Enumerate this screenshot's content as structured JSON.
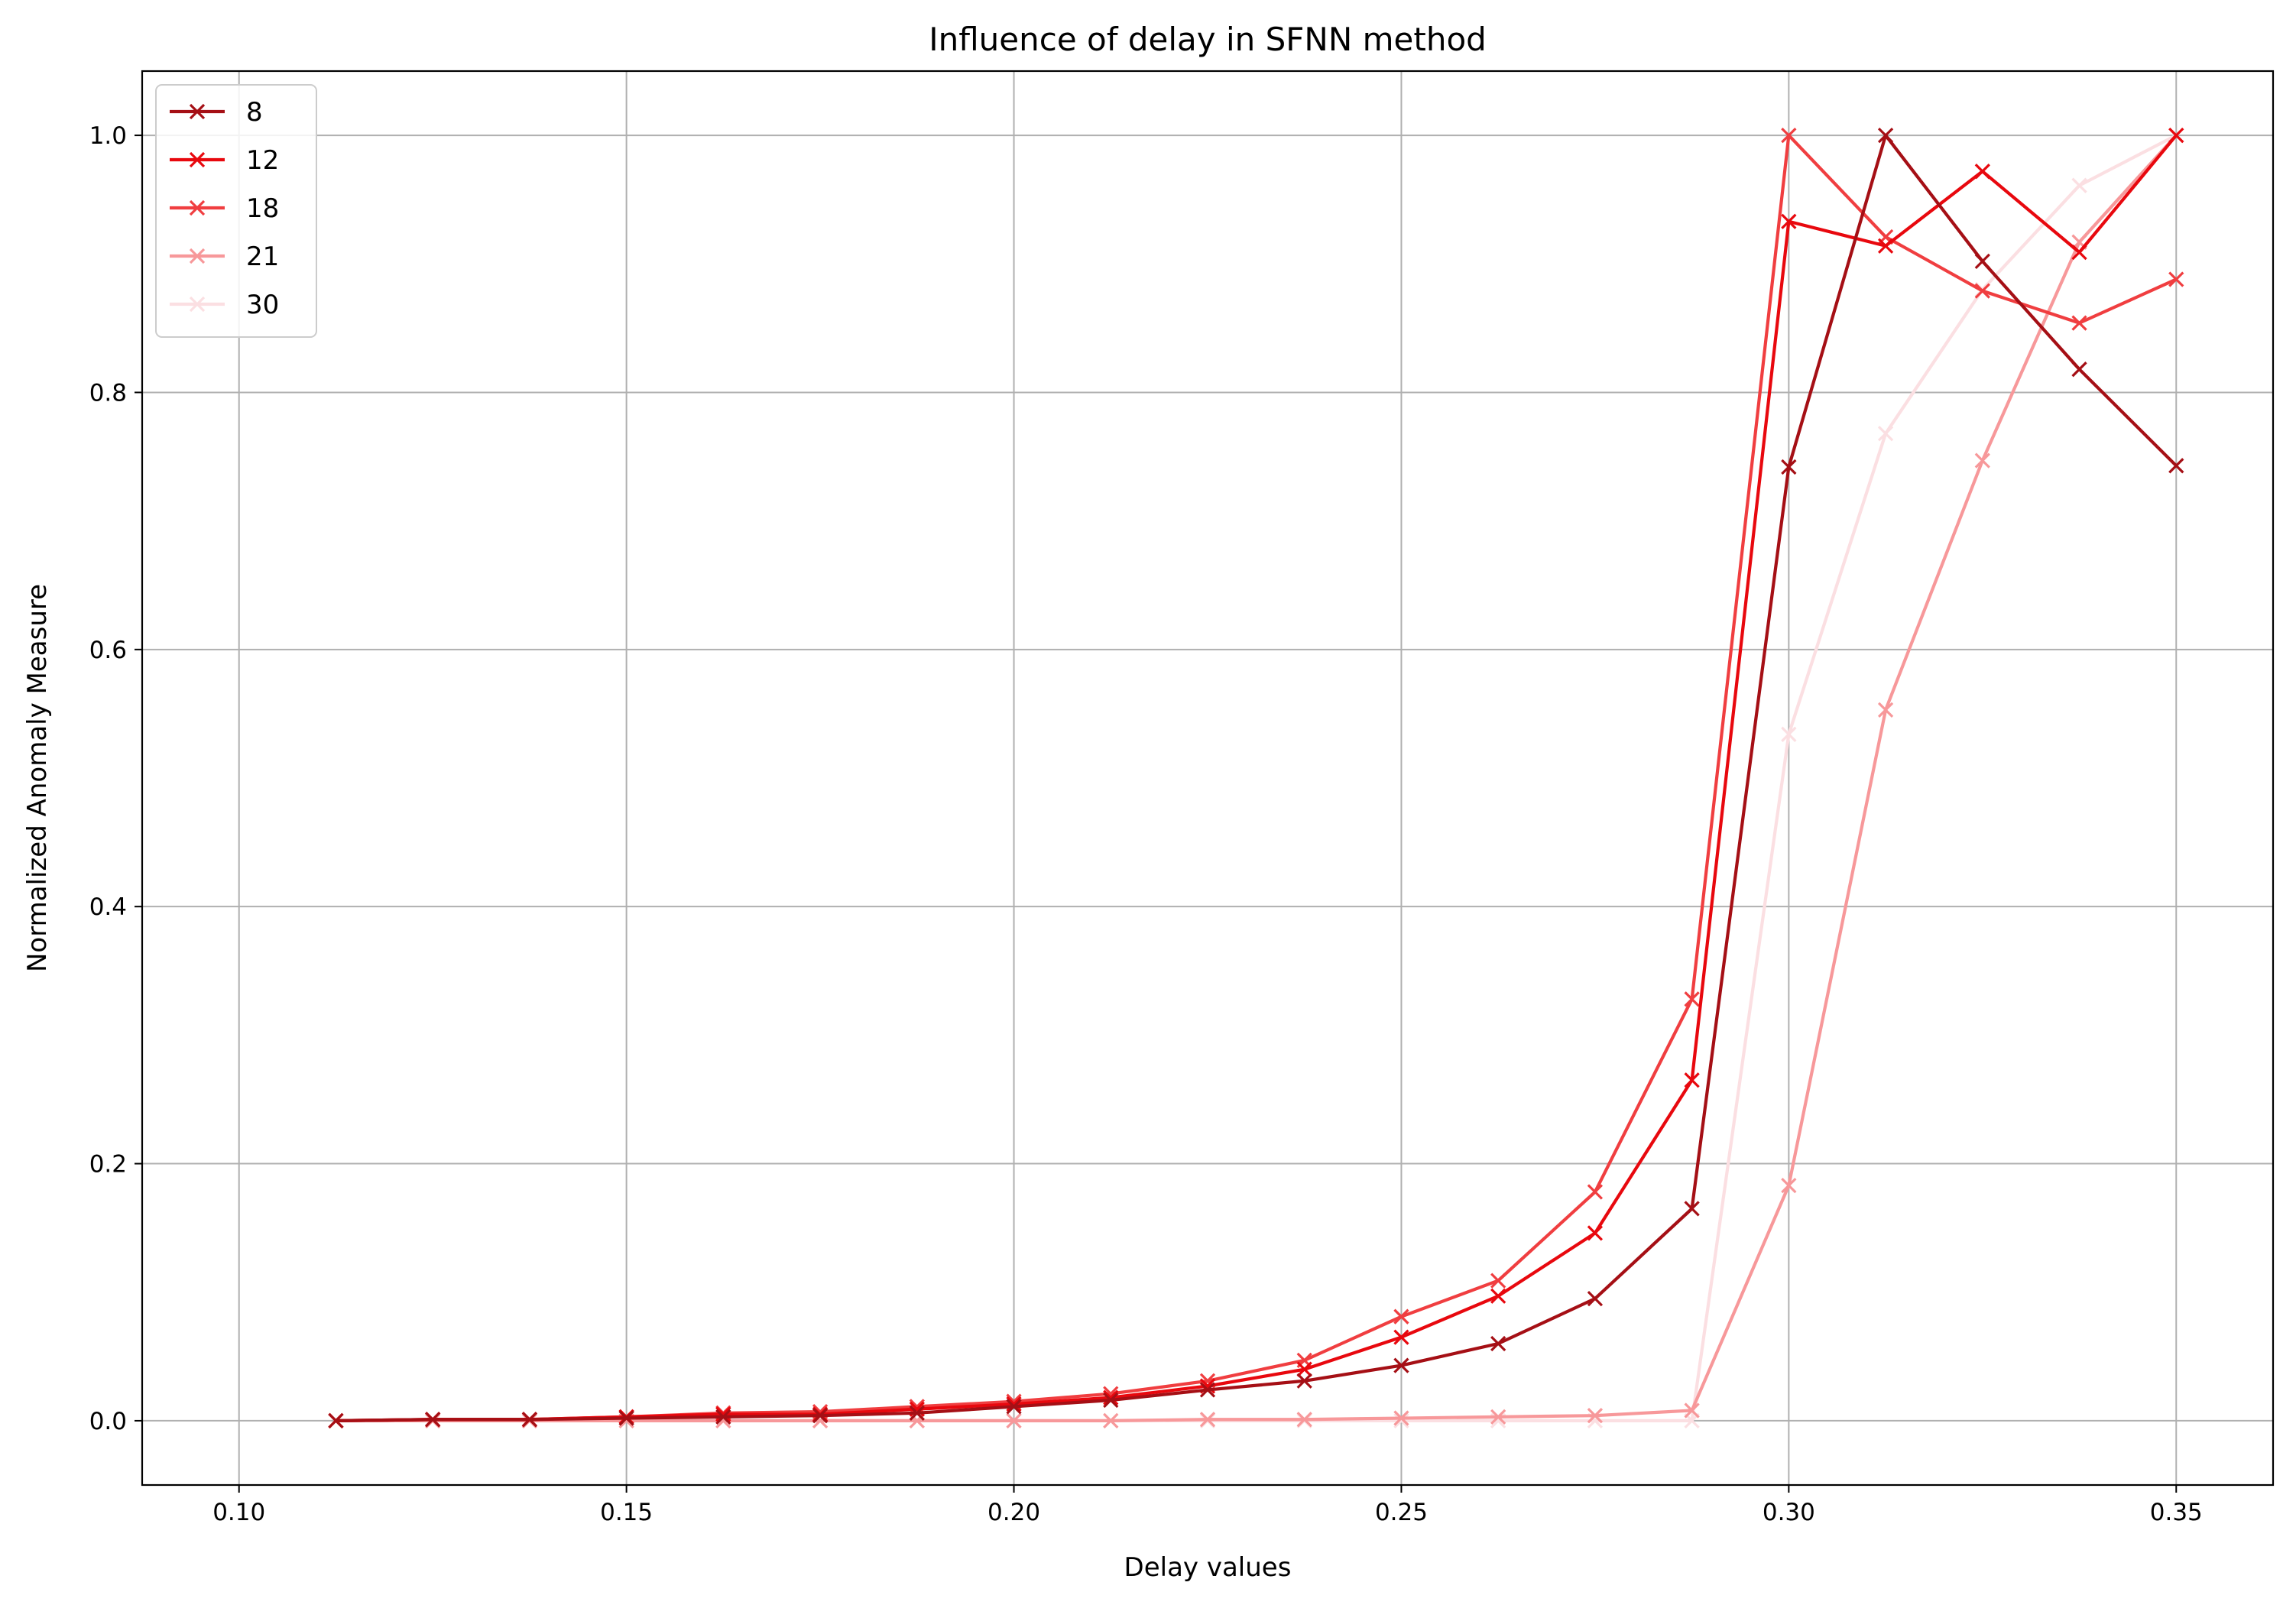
{
  "chart_data": {
    "type": "line",
    "title": "Influence of delay in SFNN method",
    "xlabel": "Delay values",
    "ylabel": "Normalized Anomaly Measure",
    "xlim": [
      0.0875,
      0.3625
    ],
    "ylim": [
      -0.05,
      1.05
    ],
    "xticks": [
      "0.10",
      "0.15",
      "0.20",
      "0.25",
      "0.30",
      "0.35"
    ],
    "yticks": [
      "0.0",
      "0.2",
      "0.4",
      "0.6",
      "0.8",
      "1.0"
    ],
    "grid": true,
    "legend_position": "top-left",
    "marker": "x",
    "x": [
      0.1,
      0.1125,
      0.125,
      0.1375,
      0.15,
      0.1625,
      0.175,
      0.1875,
      0.2,
      0.2125,
      0.225,
      0.2375,
      0.25,
      0.2625,
      0.275,
      0.2875,
      0.3,
      0.3125,
      0.325,
      0.3375,
      0.35
    ],
    "series": [
      {
        "name": "8",
        "color": "#a50f15",
        "values": [
          0.0,
          0.001,
          0.001,
          0.002,
          0.003,
          0.004,
          0.006,
          0.011,
          0.016,
          0.024,
          0.031,
          0.043,
          0.06,
          0.095,
          0.165,
          0.742,
          1.0,
          0.902,
          0.818,
          0.743,
          null
        ]
      },
      {
        "name": "12",
        "color": "#e8080e",
        "values": [
          0.0,
          0.001,
          0.001,
          0.003,
          0.005,
          0.005,
          0.009,
          0.013,
          0.018,
          0.027,
          0.04,
          0.065,
          0.097,
          0.146,
          0.265,
          0.933,
          0.914,
          0.972,
          0.909,
          1.0,
          null
        ]
      },
      {
        "name": "18",
        "color": "#f03e40",
        "values": [
          0.0,
          0.001,
          0.001,
          0.003,
          0.006,
          0.007,
          0.011,
          0.015,
          0.021,
          0.031,
          0.047,
          0.081,
          0.109,
          0.178,
          0.328,
          1.0,
          0.921,
          0.879,
          0.854,
          0.888,
          null
        ]
      },
      {
        "name": "21",
        "color": "#f7989a",
        "values": [
          0.0,
          0.0,
          0.0,
          0.0,
          0.0,
          0.0,
          0.0,
          0.0,
          0.0,
          0.001,
          0.001,
          0.002,
          0.003,
          0.004,
          0.008,
          0.183,
          0.553,
          0.747,
          0.917,
          1.0,
          null
        ]
      },
      {
        "name": "30",
        "color": "#fbdfe2",
        "values": [
          0.0,
          0.0,
          0.0,
          0.0,
          0.0,
          0.0,
          0.0,
          0.0,
          0.0,
          0.0,
          0.0,
          0.0,
          0.0,
          0.0,
          0.0,
          0.534,
          0.768,
          0.88,
          0.961,
          1.0,
          null
        ]
      }
    ]
  }
}
